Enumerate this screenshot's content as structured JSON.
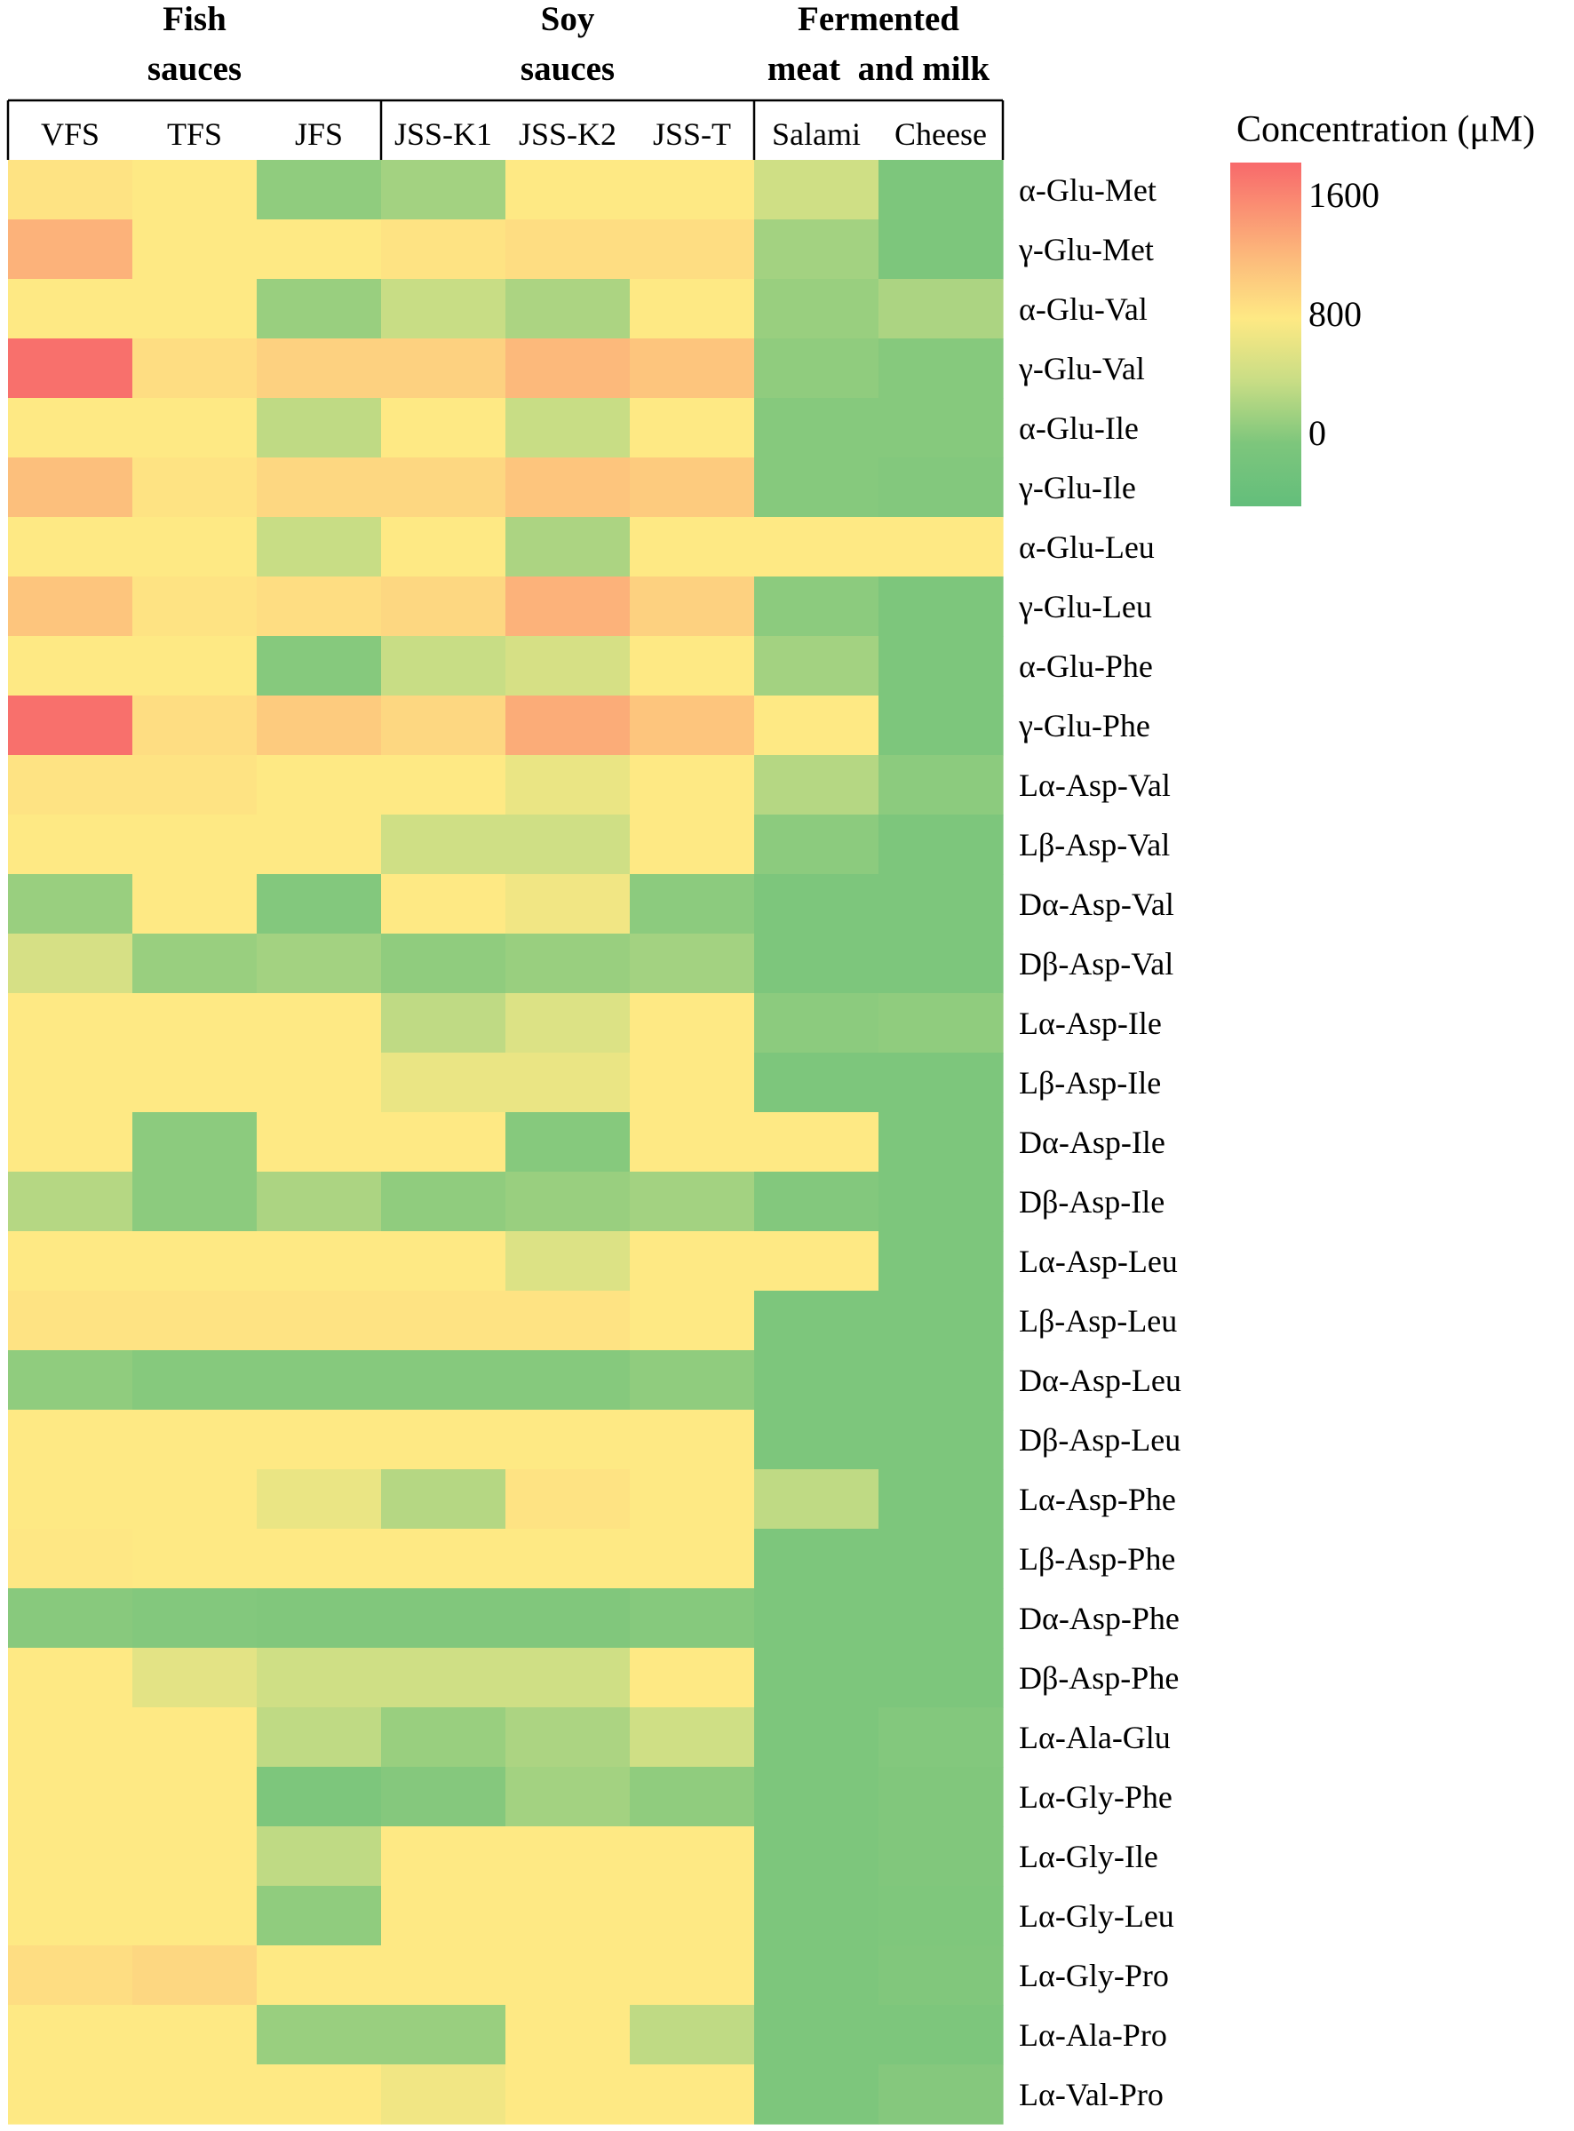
{
  "chart_data": {
    "type": "heatmap",
    "groups": [
      {
        "label_lines": [
          "Fish",
          "sauces"
        ],
        "columns": [
          "VFS",
          "TFS",
          "JFS"
        ]
      },
      {
        "label_lines": [
          "Soy",
          "sauces"
        ],
        "columns": [
          "JSS-K1",
          "JSS-K2",
          "JSS-T"
        ]
      },
      {
        "label_lines": [
          "Fermented",
          "meat  and milk"
        ],
        "columns": [
          "Salami",
          "Cheese"
        ]
      }
    ],
    "columns": [
      "VFS",
      "TFS",
      "JFS",
      "JSS-K1",
      "JSS-K2",
      "JSS-T",
      "Salami",
      "Cheese"
    ],
    "rows": [
      "α-Glu-Met",
      "γ-Glu-Met",
      "α-Glu-Val",
      "γ-Glu-Val",
      "α-Glu-Ile",
      "γ-Glu-Ile",
      "α-Glu-Leu",
      "γ-Glu-Leu",
      "α-Glu-Phe",
      "γ-Glu-Phe",
      "Lα-Asp-Val",
      "Lβ-Asp-Val",
      "Dα-Asp-Val",
      "Dβ-Asp-Val",
      "Lα-Asp-Ile",
      "Lβ-Asp-Ile",
      "Dα-Asp-Ile",
      "Dβ-Asp-Ile",
      "Lα-Asp-Leu",
      "Lβ-Asp-Leu",
      "Dα-Asp-Leu",
      "Dβ-Asp-Leu",
      "Lα-Asp-Phe",
      "Lβ-Asp-Phe",
      "Dα-Asp-Phe",
      "Dβ-Asp-Phe",
      "Lα-Ala-Glu",
      "Lα-Gly-Phe",
      "Lα-Gly-Ile",
      "Lα-Gly-Leu",
      "Lα-Gly-Pro",
      "Lα-Ala-Pro",
      "Lα-Val-Pro"
    ],
    "values": [
      [
        850,
        800,
        100,
        200,
        800,
        800,
        450,
        0
      ],
      [
        1250,
        800,
        800,
        850,
        900,
        900,
        200,
        0
      ],
      [
        800,
        800,
        150,
        400,
        250,
        800,
        150,
        250
      ],
      [
        1750,
        900,
        1000,
        1000,
        1200,
        1100,
        100,
        50
      ],
      [
        800,
        800,
        350,
        800,
        400,
        800,
        50,
        50
      ],
      [
        1150,
        850,
        950,
        950,
        1100,
        1050,
        50,
        30
      ],
      [
        800,
        800,
        400,
        800,
        250,
        800,
        800,
        800
      ],
      [
        1100,
        850,
        900,
        950,
        1250,
        1000,
        80,
        0
      ],
      [
        800,
        800,
        50,
        400,
        500,
        800,
        200,
        0
      ],
      [
        1750,
        900,
        1050,
        950,
        1300,
        1100,
        800,
        0
      ],
      [
        850,
        850,
        800,
        800,
        650,
        800,
        300,
        80
      ],
      [
        800,
        800,
        800,
        450,
        450,
        800,
        80,
        0
      ],
      [
        150,
        800,
        30,
        800,
        700,
        80,
        0,
        0
      ],
      [
        500,
        150,
        200,
        100,
        150,
        200,
        0,
        0
      ],
      [
        800,
        800,
        800,
        350,
        550,
        800,
        80,
        100
      ],
      [
        800,
        800,
        800,
        650,
        650,
        800,
        0,
        0
      ],
      [
        800,
        80,
        800,
        800,
        50,
        800,
        800,
        0
      ],
      [
        300,
        80,
        250,
        100,
        150,
        200,
        30,
        0
      ],
      [
        800,
        800,
        800,
        800,
        550,
        800,
        800,
        0
      ],
      [
        850,
        850,
        850,
        850,
        850,
        800,
        0,
        0
      ],
      [
        100,
        50,
        50,
        50,
        50,
        100,
        0,
        0
      ],
      [
        800,
        800,
        800,
        800,
        800,
        800,
        0,
        0
      ],
      [
        800,
        800,
        650,
        300,
        850,
        800,
        350,
        0
      ],
      [
        820,
        800,
        800,
        800,
        800,
        800,
        0,
        0
      ],
      [
        60,
        30,
        20,
        20,
        20,
        50,
        0,
        0
      ],
      [
        800,
        600,
        450,
        450,
        450,
        800,
        0,
        0
      ],
      [
        800,
        800,
        350,
        150,
        250,
        450,
        0,
        30
      ],
      [
        800,
        800,
        0,
        40,
        200,
        100,
        0,
        20
      ],
      [
        800,
        800,
        350,
        800,
        800,
        800,
        0,
        20
      ],
      [
        800,
        800,
        100,
        800,
        800,
        800,
        0,
        10
      ],
      [
        900,
        950,
        800,
        800,
        800,
        800,
        0,
        20
      ],
      [
        800,
        800,
        150,
        150,
        800,
        350,
        0,
        0
      ],
      [
        800,
        800,
        800,
        700,
        800,
        800,
        0,
        40
      ]
    ],
    "color_scale": {
      "title": "Concentration (μM)",
      "ticks": [
        "1600",
        "800",
        "0"
      ],
      "stops": [
        {
          "value": -400,
          "color": "#63be7b"
        },
        {
          "value": 0,
          "color": "#7dc67c"
        },
        {
          "value": 400,
          "color": "#c8dd85"
        },
        {
          "value": 800,
          "color": "#fee984"
        },
        {
          "value": 1200,
          "color": "#fcb97b"
        },
        {
          "value": 1800,
          "color": "#f8696b"
        }
      ]
    }
  }
}
